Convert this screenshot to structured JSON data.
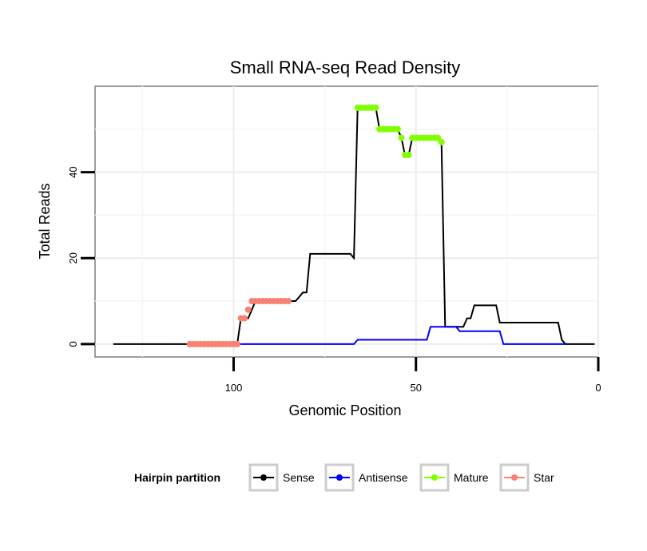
{
  "chart_data": {
    "type": "line",
    "title": "Small RNA-seq Read Density",
    "xlabel": "Genomic Position",
    "ylabel": "Total Reads",
    "xlim": [
      0,
      138
    ],
    "x_reversed": true,
    "ylim": [
      -3,
      60
    ],
    "x_ticks": [
      100,
      50,
      0
    ],
    "x_tick_labels": [
      "100",
      "50",
      "0"
    ],
    "y_ticks": [
      0,
      20,
      40
    ],
    "y_tick_labels": [
      "0",
      "20",
      "40"
    ],
    "grid": true,
    "legend": {
      "title": "Hairpin partition",
      "position": "bottom",
      "entries": [
        "Sense",
        "Antisense",
        "Mature",
        "Star"
      ]
    },
    "series": [
      {
        "name": "Sense",
        "color": "#000000",
        "style": "line",
        "points": [
          [
            133,
            0
          ],
          [
            99,
            0
          ],
          [
            98,
            6
          ],
          [
            96,
            6
          ],
          [
            95,
            8
          ],
          [
            94,
            10
          ],
          [
            83,
            10
          ],
          [
            81,
            12
          ],
          [
            80,
            12
          ],
          [
            79,
            21
          ],
          [
            68,
            21
          ],
          [
            67,
            20
          ],
          [
            66,
            55
          ],
          [
            61,
            55
          ],
          [
            60,
            50
          ],
          [
            55,
            50
          ],
          [
            54,
            48
          ],
          [
            53,
            44
          ],
          [
            52,
            44
          ],
          [
            51,
            48
          ],
          [
            44,
            48
          ],
          [
            43,
            47
          ],
          [
            42,
            4
          ],
          [
            37,
            4
          ],
          [
            36,
            6
          ],
          [
            35,
            6
          ],
          [
            34,
            9
          ],
          [
            28,
            9
          ],
          [
            27,
            5
          ],
          [
            11,
            5
          ],
          [
            10,
            1
          ],
          [
            9,
            0
          ],
          [
            1,
            0
          ]
        ]
      },
      {
        "name": "Antisense",
        "color": "#0000FF",
        "style": "line",
        "points": [
          [
            99,
            0
          ],
          [
            67,
            0
          ],
          [
            66,
            1
          ],
          [
            47,
            1
          ],
          [
            46,
            4
          ],
          [
            39,
            4
          ],
          [
            38,
            3
          ],
          [
            27,
            3
          ],
          [
            26,
            0
          ],
          [
            9,
            0
          ]
        ]
      },
      {
        "name": "Mature",
        "color": "#7FFF00",
        "style": "points",
        "points": [
          [
            66,
            55
          ],
          [
            65,
            55
          ],
          [
            64,
            55
          ],
          [
            63,
            55
          ],
          [
            62,
            55
          ],
          [
            61,
            55
          ],
          [
            60,
            50
          ],
          [
            59,
            50
          ],
          [
            58,
            50
          ],
          [
            57,
            50
          ],
          [
            56,
            50
          ],
          [
            55,
            50
          ],
          [
            54,
            48
          ],
          [
            53,
            44
          ],
          [
            52,
            44
          ],
          [
            51,
            48
          ],
          [
            50,
            48
          ],
          [
            49,
            48
          ],
          [
            48,
            48
          ],
          [
            47,
            48
          ],
          [
            46,
            48
          ],
          [
            45,
            48
          ],
          [
            44,
            48
          ],
          [
            43,
            47
          ]
        ]
      },
      {
        "name": "Star",
        "color": "#FA8072",
        "style": "points",
        "points": [
          [
            112,
            0
          ],
          [
            111,
            0
          ],
          [
            110,
            0
          ],
          [
            109,
            0
          ],
          [
            108,
            0
          ],
          [
            107,
            0
          ],
          [
            106,
            0
          ],
          [
            105,
            0
          ],
          [
            104,
            0
          ],
          [
            103,
            0
          ],
          [
            102,
            0
          ],
          [
            101,
            0
          ],
          [
            100,
            0
          ],
          [
            99,
            0
          ],
          [
            98,
            6
          ],
          [
            97,
            6
          ],
          [
            96,
            8
          ],
          [
            95,
            10
          ],
          [
            94,
            10
          ],
          [
            93,
            10
          ],
          [
            92,
            10
          ],
          [
            91,
            10
          ],
          [
            90,
            10
          ],
          [
            89,
            10
          ],
          [
            88,
            10
          ],
          [
            87,
            10
          ],
          [
            86,
            10
          ],
          [
            85,
            10
          ]
        ]
      }
    ]
  }
}
